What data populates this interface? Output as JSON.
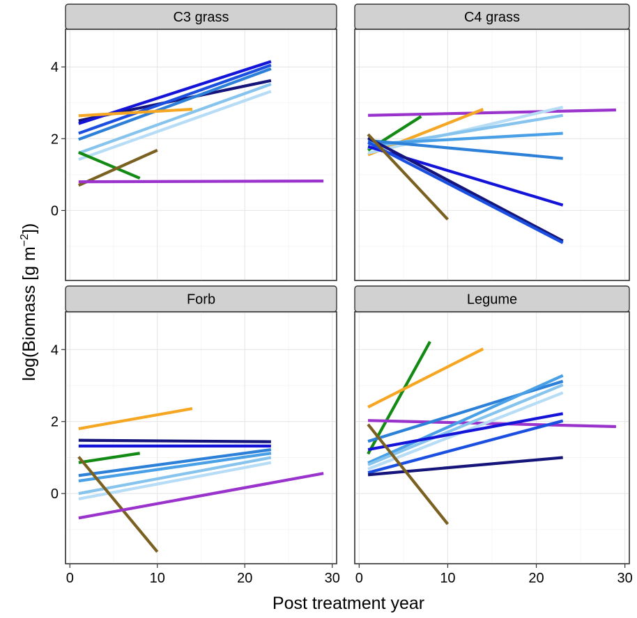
{
  "chart_data": {
    "type": "line",
    "xlabel": "Post treatment year",
    "ylabel": "log(Biomass [g m",
    "ylabel_unit_exponent": "−2",
    "ylabel_suffix": "])",
    "xlim": [
      -0.5,
      30.5
    ],
    "ylim": [
      -1.95,
      5.05
    ],
    "x_ticks": [
      0,
      10,
      20,
      30
    ],
    "x_tick_labels": [
      "0",
      "10",
      "20",
      "30"
    ],
    "y_ticks": [
      0,
      2,
      4
    ],
    "y_tick_labels": [
      "0",
      "2",
      "4"
    ],
    "grid": true,
    "legend": "none",
    "colors": {
      "navy": "#14147a",
      "blue": "#1414d8",
      "royal": "#1a4fe0",
      "mid_blue": "#2c80d8",
      "sky_blue": "#4aa0e6",
      "light_blue": "#86c4ee",
      "pale_blue": "#b6dcf6",
      "orange": "#f5a623",
      "green": "#138a13",
      "brown": "#7b6121",
      "purple": "#9933cc"
    },
    "panels": [
      {
        "title": "C3 grass",
        "series": [
          {
            "color": "navy",
            "x": [
              1,
              23
            ],
            "y": [
              2.5,
              3.62
            ]
          },
          {
            "color": "blue",
            "x": [
              1,
              23
            ],
            "y": [
              2.42,
              4.15
            ]
          },
          {
            "color": "royal",
            "x": [
              1,
              23
            ],
            "y": [
              2.15,
              4.05
            ]
          },
          {
            "color": "mid_blue",
            "x": [
              1,
              23
            ],
            "y": [
              1.98,
              3.95
            ]
          },
          {
            "color": "light_blue",
            "x": [
              1,
              23
            ],
            "y": [
              1.6,
              3.52
            ]
          },
          {
            "color": "pale_blue",
            "x": [
              1,
              23
            ],
            "y": [
              1.42,
              3.32
            ]
          },
          {
            "color": "orange",
            "x": [
              1,
              14
            ],
            "y": [
              2.64,
              2.82
            ]
          },
          {
            "color": "green",
            "x": [
              1,
              8
            ],
            "y": [
              1.62,
              0.9
            ]
          },
          {
            "color": "brown",
            "x": [
              1,
              10
            ],
            "y": [
              0.7,
              1.68
            ]
          },
          {
            "color": "purple",
            "x": [
              1,
              29
            ],
            "y": [
              0.8,
              0.82
            ]
          }
        ]
      },
      {
        "title": "C4 grass",
        "series": [
          {
            "color": "purple",
            "x": [
              1,
              29
            ],
            "y": [
              2.65,
              2.8
            ]
          },
          {
            "color": "green",
            "x": [
              1,
              7
            ],
            "y": [
              1.68,
              2.62
            ]
          },
          {
            "color": "orange",
            "x": [
              1,
              14
            ],
            "y": [
              1.55,
              2.82
            ]
          },
          {
            "color": "pale_blue",
            "x": [
              1,
              23
            ],
            "y": [
              1.6,
              2.88
            ]
          },
          {
            "color": "light_blue",
            "x": [
              1,
              23
            ],
            "y": [
              1.75,
              2.65
            ]
          },
          {
            "color": "sky_blue",
            "x": [
              1,
              23
            ],
            "y": [
              1.85,
              2.15
            ]
          },
          {
            "color": "mid_blue",
            "x": [
              1,
              23
            ],
            "y": [
              1.95,
              1.45
            ]
          },
          {
            "color": "blue",
            "x": [
              1,
              23
            ],
            "y": [
              1.78,
              0.15
            ]
          },
          {
            "color": "navy",
            "x": [
              1,
              23
            ],
            "y": [
              2.02,
              -0.85
            ]
          },
          {
            "color": "royal",
            "x": [
              1,
              23
            ],
            "y": [
              1.9,
              -0.9
            ]
          },
          {
            "color": "brown",
            "x": [
              1,
              10
            ],
            "y": [
              2.12,
              -0.25
            ]
          }
        ]
      },
      {
        "title": "Forb",
        "series": [
          {
            "color": "orange",
            "x": [
              1,
              14
            ],
            "y": [
              1.8,
              2.36
            ]
          },
          {
            "color": "navy",
            "x": [
              1,
              23
            ],
            "y": [
              1.48,
              1.44
            ]
          },
          {
            "color": "blue",
            "x": [
              1,
              23
            ],
            "y": [
              1.32,
              1.32
            ]
          },
          {
            "color": "green",
            "x": [
              1,
              8
            ],
            "y": [
              0.86,
              1.12
            ]
          },
          {
            "color": "mid_blue",
            "x": [
              1,
              23
            ],
            "y": [
              0.5,
              1.22
            ]
          },
          {
            "color": "sky_blue",
            "x": [
              1,
              23
            ],
            "y": [
              0.35,
              1.12
            ]
          },
          {
            "color": "light_blue",
            "x": [
              1,
              23
            ],
            "y": [
              0.0,
              1.0
            ]
          },
          {
            "color": "pale_blue",
            "x": [
              1,
              23
            ],
            "y": [
              -0.15,
              0.86
            ]
          },
          {
            "color": "brown",
            "x": [
              1,
              10
            ],
            "y": [
              1.02,
              -1.62
            ]
          },
          {
            "color": "purple",
            "x": [
              1,
              29
            ],
            "y": [
              -0.68,
              0.56
            ]
          }
        ]
      },
      {
        "title": "Legume",
        "series": [
          {
            "color": "green",
            "x": [
              1,
              8
            ],
            "y": [
              1.1,
              4.22
            ]
          },
          {
            "color": "orange",
            "x": [
              1,
              14
            ],
            "y": [
              2.4,
              4.02
            ]
          },
          {
            "color": "purple",
            "x": [
              1,
              29
            ],
            "y": [
              2.03,
              1.86
            ]
          },
          {
            "color": "mid_blue",
            "x": [
              1,
              23
            ],
            "y": [
              1.45,
              3.12
            ]
          },
          {
            "color": "sky_blue",
            "x": [
              1,
              23
            ],
            "y": [
              0.85,
              3.28
            ]
          },
          {
            "color": "light_blue",
            "x": [
              1,
              23
            ],
            "y": [
              0.8,
              3.02
            ]
          },
          {
            "color": "pale_blue",
            "x": [
              1,
              23
            ],
            "y": [
              0.68,
              2.8
            ]
          },
          {
            "color": "blue",
            "x": [
              1,
              23
            ],
            "y": [
              1.22,
              2.22
            ]
          },
          {
            "color": "royal",
            "x": [
              1,
              23
            ],
            "y": [
              0.58,
              2.02
            ]
          },
          {
            "color": "navy",
            "x": [
              1,
              23
            ],
            "y": [
              0.52,
              1.0
            ]
          },
          {
            "color": "brown",
            "x": [
              1,
              10
            ],
            "y": [
              1.92,
              -0.85
            ]
          }
        ]
      }
    ]
  }
}
